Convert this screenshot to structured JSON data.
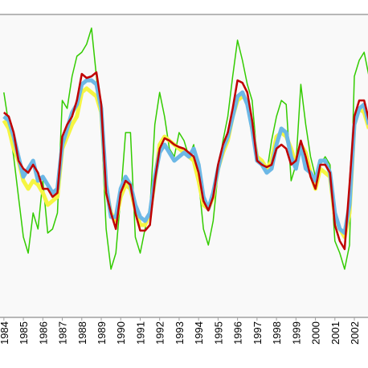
{
  "chart_data": {
    "type": "line",
    "x": [
      1984,
      1984.25,
      1984.5,
      1984.75,
      1985,
      1985.25,
      1985.5,
      1985.75,
      1986,
      1986.25,
      1986.5,
      1986.75,
      1987,
      1987.25,
      1987.5,
      1987.75,
      1988,
      1988.25,
      1988.5,
      1988.75,
      1989,
      1989.25,
      1989.5,
      1989.75,
      1990,
      1990.25,
      1990.5,
      1990.75,
      1991,
      1991.25,
      1991.5,
      1991.75,
      1992,
      1992.25,
      1992.5,
      1992.75,
      1993,
      1993.25,
      1993.5,
      1993.75,
      1994,
      1994.25,
      1994.5,
      1994.75,
      1995,
      1995.25,
      1995.5,
      1995.75,
      1996,
      1996.25,
      1996.5,
      1996.75,
      1997,
      1997.25,
      1997.5,
      1997.75,
      1998,
      1998.25,
      1998.5,
      1998.75,
      1999,
      1999.25,
      1999.5,
      1999.75,
      2000,
      2000.25,
      2000.5,
      2000.75,
      2001,
      2001.25,
      2001.5,
      2001.75,
      2002,
      2002.25,
      2002.5,
      2002.75
    ],
    "series": [
      {
        "color": "#33cc00",
        "width": 1.5,
        "values": [
          280,
          240,
          200,
          150,
          100,
          80,
          130,
          110,
          170,
          105,
          110,
          130,
          270,
          260,
          300,
          325,
          330,
          340,
          360,
          300,
          240,
          110,
          60,
          80,
          150,
          230,
          230,
          100,
          80,
          110,
          135,
          240,
          280,
          250,
          210,
          200,
          230,
          220,
          200,
          215,
          170,
          110,
          90,
          120,
          180,
          220,
          250,
          300,
          345,
          320,
          290,
          270,
          200,
          190,
          180,
          220,
          250,
          270,
          265,
          170,
          190,
          290,
          240,
          200,
          175,
          190,
          200,
          190,
          95,
          80,
          60,
          90,
          300,
          320,
          330,
          300
        ]
      },
      {
        "color": "#f5f542",
        "width": 5,
        "values": [
          245,
          235,
          210,
          195,
          170,
          160,
          170,
          165,
          155,
          140,
          145,
          150,
          210,
          225,
          240,
          250,
          280,
          285,
          280,
          275,
          255,
          160,
          130,
          120,
          150,
          165,
          160,
          135,
          115,
          115,
          130,
          170,
          215,
          225,
          220,
          215,
          210,
          205,
          200,
          195,
          170,
          140,
          135,
          150,
          185,
          205,
          220,
          250,
          270,
          275,
          270,
          235,
          200,
          195,
          185,
          195,
          225,
          230,
          225,
          210,
          190,
          215,
          205,
          180,
          160,
          185,
          180,
          175,
          125,
          110,
          100,
          130,
          240,
          260,
          255,
          235
        ]
      },
      {
        "color": "#6cb8e6",
        "width": 5,
        "values": [
          250,
          245,
          225,
          200,
          175,
          185,
          195,
          170,
          175,
          165,
          155,
          160,
          215,
          235,
          255,
          265,
          290,
          295,
          295,
          290,
          260,
          165,
          125,
          125,
          160,
          175,
          165,
          140,
          125,
          120,
          130,
          175,
          205,
          215,
          205,
          195,
          200,
          205,
          200,
          210,
          190,
          150,
          135,
          155,
          185,
          210,
          225,
          250,
          275,
          280,
          265,
          235,
          195,
          190,
          180,
          185,
          215,
          235,
          230,
          200,
          185,
          215,
          185,
          180,
          170,
          195,
          195,
          180,
          130,
          110,
          105,
          140,
          240,
          260,
          265,
          240
        ]
      },
      {
        "color": "#c00000",
        "width": 2.5,
        "values": [
          255,
          250,
          230,
          195,
          185,
          180,
          190,
          180,
          160,
          160,
          150,
          155,
          225,
          240,
          250,
          270,
          303,
          298,
          300,
          305,
          265,
          155,
          130,
          110,
          155,
          170,
          165,
          130,
          108,
          108,
          115,
          170,
          210,
          223,
          220,
          215,
          212,
          210,
          205,
          200,
          180,
          145,
          133,
          150,
          190,
          215,
          230,
          260,
          295,
          292,
          280,
          245,
          195,
          190,
          187,
          190,
          210,
          215,
          210,
          190,
          195,
          220,
          200,
          175,
          160,
          190,
          190,
          180,
          115,
          95,
          85,
          165,
          250,
          270,
          270,
          245
        ]
      }
    ],
    "xlim": [
      1983.8,
      2002.7
    ],
    "xticks": [
      1984,
      1985,
      1986,
      1987,
      1988,
      1989,
      1990,
      1991,
      1992,
      1993,
      1994,
      1995,
      1996,
      1997,
      1998,
      1999,
      2000,
      2001,
      2002
    ],
    "ylim": [
      0,
      377
    ]
  }
}
